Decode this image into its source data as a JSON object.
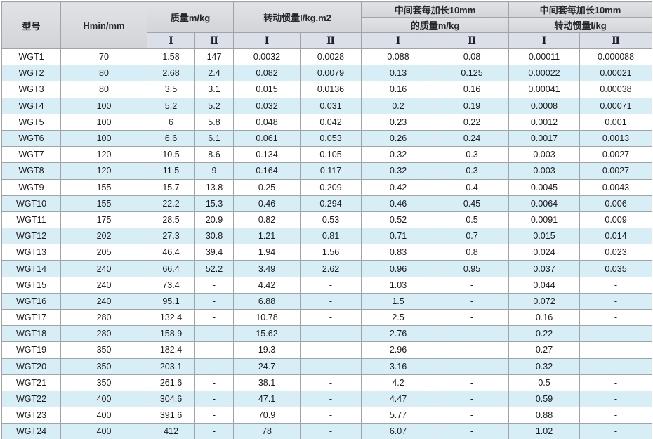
{
  "table": {
    "columns": {
      "model": "型号",
      "hmin": "Hmin/mm"
    },
    "groups": [
      {
        "title": "质量m/kg"
      },
      {
        "title": "转动惯量I/kg.m2"
      },
      {
        "line1": "中间套每加长10mm",
        "line2": "的质量m/kg"
      },
      {
        "line1": "中间套每加长10mm",
        "line2": "转动惯量I/kg"
      }
    ],
    "subheaders": [
      "Ⅰ",
      "Ⅱ",
      "Ⅰ",
      "Ⅱ",
      "Ⅰ",
      "Ⅱ",
      "Ⅰ",
      "Ⅱ"
    ],
    "rows": [
      [
        "WGT1",
        "70",
        "1.58",
        "147",
        "0.0032",
        "0.0028",
        "0.088",
        "0.08",
        "0.00011",
        "0.000088"
      ],
      [
        "WGT2",
        "80",
        "2.68",
        "2.4",
        "0.082",
        "0.0079",
        "0.13",
        "0.125",
        "0.00022",
        "0.00021"
      ],
      [
        "WGT3",
        "80",
        "3.5",
        "3.1",
        "0.015",
        "0.0136",
        "0.16",
        "0.16",
        "0.00041",
        "0.00038"
      ],
      [
        "WGT4",
        "100",
        "5.2",
        "5.2",
        "0.032",
        "0.031",
        "0.2",
        "0.19",
        "0.0008",
        "0.00071"
      ],
      [
        "WGT5",
        "100",
        "6",
        "5.8",
        "0.048",
        "0.042",
        "0.23",
        "0.22",
        "0.0012",
        "0.001"
      ],
      [
        "WGT6",
        "100",
        "6.6",
        "6.1",
        "0.061",
        "0.053",
        "0.26",
        "0.24",
        "0.0017",
        "0.0013"
      ],
      [
        "WGT7",
        "120",
        "10.5",
        "8.6",
        "0.134",
        "0.105",
        "0.32",
        "0.3",
        "0.003",
        "0.0027"
      ],
      [
        "WGT8",
        "120",
        "11.5",
        "9",
        "0.164",
        "0.117",
        "0.32",
        "0.3",
        "0.003",
        "0.0027"
      ],
      [
        "WGT9",
        "155",
        "15.7",
        "13.8",
        "0.25",
        "0.209",
        "0.42",
        "0.4",
        "0.0045",
        "0.0043"
      ],
      [
        "WGT10",
        "155",
        "22.2",
        "15.3",
        "0.46",
        "0.294",
        "0.46",
        "0.45",
        "0.0064",
        "0.006"
      ],
      [
        "WGT11",
        "175",
        "28.5",
        "20.9",
        "0.82",
        "0.53",
        "0.52",
        "0.5",
        "0.0091",
        "0.009"
      ],
      [
        "WGT12",
        "202",
        "27.3",
        "30.8",
        "1.21",
        "0.81",
        "0.71",
        "0.7",
        "0.015",
        "0.014"
      ],
      [
        "WGT13",
        "205",
        "46.4",
        "39.4",
        "1.94",
        "1.56",
        "0.83",
        "0.8",
        "0.024",
        "0.023"
      ],
      [
        "WGT14",
        "240",
        "66.4",
        "52.2",
        "3.49",
        "2.62",
        "0.96",
        "0.95",
        "0.037",
        "0.035"
      ],
      [
        "WGT15",
        "240",
        "73.4",
        "-",
        "4.42",
        "-",
        "1.03",
        "-",
        "0.044",
        "-"
      ],
      [
        "WGT16",
        "240",
        "95.1",
        "-",
        "6.88",
        "-",
        "1.5",
        "-",
        "0.072",
        "-"
      ],
      [
        "WGT17",
        "280",
        "132.4",
        "-",
        "10.78",
        "-",
        "2.5",
        "-",
        "0.16",
        "-"
      ],
      [
        "WGT18",
        "280",
        "158.9",
        "-",
        "15.62",
        "-",
        "2.76",
        "-",
        "0.22",
        "-"
      ],
      [
        "WGT19",
        "350",
        "182.4",
        "-",
        "19.3",
        "-",
        "2.96",
        "-",
        "0.27",
        "-"
      ],
      [
        "WGT20",
        "350",
        "203.1",
        "-",
        "24.7",
        "-",
        "3.16",
        "-",
        "0.32",
        "-"
      ],
      [
        "WGT21",
        "350",
        "261.6",
        "-",
        "38.1",
        "-",
        "4.2",
        "-",
        "0.5",
        "-"
      ],
      [
        "WGT22",
        "400",
        "304.6",
        "-",
        "47.1",
        "-",
        "4.47",
        "-",
        "0.59",
        "-"
      ],
      [
        "WGT23",
        "400",
        "391.6",
        "-",
        "70.9",
        "-",
        "5.77",
        "-",
        "0.88",
        "-"
      ],
      [
        "WGT24",
        "400",
        "412",
        "-",
        "78",
        "-",
        "6.07",
        "-",
        "1.02",
        "-"
      ]
    ]
  },
  "colors": {
    "header_bg": "#d6d8dc",
    "subheader_bg": "#dadfe8",
    "stripe_bg": "#d8eef7",
    "border": "#a1a3a6"
  }
}
